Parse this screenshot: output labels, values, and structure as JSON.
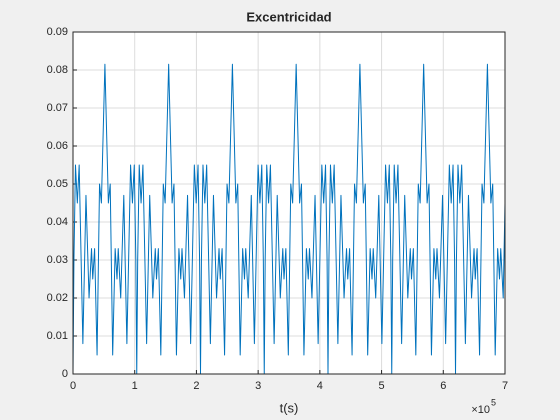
{
  "chart_data": {
    "type": "line",
    "title": "Excentricidad",
    "xlabel": "t(s)",
    "x_multiplier": "×10",
    "x_multiplier_exponent": "5",
    "x": [
      0,
      0.015,
      0.04,
      0.07,
      0.1,
      0.16,
      0.21,
      0.26,
      0.3,
      0.32,
      0.35,
      0.39,
      0.43,
      0.46,
      0.517,
      0.573,
      0.603,
      0.643,
      0.683,
      0.713,
      0.733,
      0.773,
      0.823,
      0.873,
      0.933,
      0.963,
      0.993,
      1.018,
      1.033,
      1.048,
      1.073,
      1.103,
      1.133,
      1.193,
      1.243,
      1.293,
      1.333,
      1.353,
      1.383,
      1.423,
      1.463,
      1.493,
      1.55,
      1.606,
      1.636,
      1.676,
      1.716,
      1.746,
      1.766,
      1.806,
      1.856,
      1.906,
      1.966,
      1.996,
      2.026,
      2.051,
      2.066,
      2.081,
      2.106,
      2.136,
      2.166,
      2.226,
      2.276,
      2.326,
      2.366,
      2.386,
      2.416,
      2.456,
      2.496,
      2.526,
      2.583,
      2.639,
      2.669,
      2.709,
      2.749,
      2.779,
      2.799,
      2.839,
      2.889,
      2.939,
      2.999,
      3.029,
      3.059,
      3.084,
      3.099,
      3.114,
      3.139,
      3.169,
      3.199,
      3.259,
      3.309,
      3.359,
      3.399,
      3.419,
      3.449,
      3.489,
      3.529,
      3.559,
      3.616,
      3.672,
      3.702,
      3.742,
      3.782,
      3.812,
      3.832,
      3.872,
      3.922,
      3.972,
      4.032,
      4.062,
      4.092,
      4.117,
      4.132,
      4.147,
      4.172,
      4.202,
      4.232,
      4.292,
      4.342,
      4.392,
      4.432,
      4.452,
      4.482,
      4.522,
      4.562,
      4.592,
      4.649,
      4.705,
      4.735,
      4.775,
      4.815,
      4.845,
      4.865,
      4.905,
      4.955,
      5.005,
      5.065,
      5.095,
      5.125,
      5.15,
      5.165,
      5.18,
      5.205,
      5.235,
      5.265,
      5.325,
      5.375,
      5.425,
      5.465,
      5.485,
      5.515,
      5.555,
      5.595,
      5.625,
      5.682,
      5.738,
      5.768,
      5.808,
      5.848,
      5.878,
      5.898,
      5.938,
      5.988,
      6.038,
      6.098,
      6.128,
      6.158,
      6.183,
      6.198,
      6.213,
      6.238,
      6.268,
      6.298,
      6.358,
      6.408,
      6.458,
      6.498,
      6.518,
      6.548,
      6.588,
      6.628,
      6.658,
      6.715,
      6.771,
      6.801,
      6.841,
      6.881,
      6.911,
      6.931,
      6.971,
      7.0
    ],
    "series": [
      {
        "color": "#0072bd",
        "values": [
          0,
          0.03,
          0.055,
          0.045,
          0.055,
          0.008,
          0.047,
          0.02,
          0.033,
          0.025,
          0.033,
          0.005,
          0.05,
          0.045,
          0.0815,
          0.045,
          0.05,
          0.005,
          0.033,
          0.025,
          0.033,
          0.02,
          0.047,
          0.008,
          0.055,
          0.045,
          0.055,
          0.03,
          0,
          0.03,
          0.055,
          0.045,
          0.055,
          0.008,
          0.047,
          0.02,
          0.033,
          0.025,
          0.033,
          0.005,
          0.05,
          0.045,
          0.0815,
          0.045,
          0.05,
          0.005,
          0.033,
          0.025,
          0.033,
          0.02,
          0.047,
          0.008,
          0.055,
          0.045,
          0.055,
          0.03,
          0,
          0.03,
          0.055,
          0.045,
          0.055,
          0.008,
          0.047,
          0.02,
          0.033,
          0.025,
          0.033,
          0.005,
          0.05,
          0.045,
          0.0815,
          0.045,
          0.05,
          0.005,
          0.033,
          0.025,
          0.033,
          0.02,
          0.047,
          0.008,
          0.055,
          0.045,
          0.055,
          0.03,
          0,
          0.03,
          0.055,
          0.045,
          0.055,
          0.008,
          0.047,
          0.02,
          0.033,
          0.025,
          0.033,
          0.005,
          0.05,
          0.045,
          0.0815,
          0.045,
          0.05,
          0.005,
          0.033,
          0.025,
          0.033,
          0.02,
          0.047,
          0.008,
          0.055,
          0.045,
          0.055,
          0.03,
          0,
          0.03,
          0.055,
          0.045,
          0.055,
          0.008,
          0.047,
          0.02,
          0.033,
          0.025,
          0.033,
          0.005,
          0.05,
          0.045,
          0.0815,
          0.045,
          0.05,
          0.005,
          0.033,
          0.025,
          0.033,
          0.02,
          0.047,
          0.008,
          0.055,
          0.045,
          0.055,
          0.03,
          0,
          0.03,
          0.055,
          0.045,
          0.055,
          0.008,
          0.047,
          0.02,
          0.033,
          0.025,
          0.033,
          0.005,
          0.05,
          0.045,
          0.0815,
          0.045,
          0.05,
          0.005,
          0.033,
          0.025,
          0.033,
          0.02,
          0.047,
          0.008,
          0.055,
          0.045,
          0.055,
          0.03,
          0,
          0.03,
          0.055,
          0.045,
          0.055,
          0.008,
          0.047,
          0.02,
          0.033,
          0.025,
          0.033,
          0.005,
          0.05,
          0.045,
          0.0815,
          0.045,
          0.05,
          0.005,
          0.033,
          0.025,
          0.033,
          0.02,
          0.045
        ]
      }
    ],
    "xlim": [
      0,
      7
    ],
    "xticks": [
      0,
      1,
      2,
      3,
      4,
      5,
      6,
      7
    ],
    "ylim": [
      0,
      0.09
    ],
    "yticks": [
      0,
      0.01,
      0.02,
      0.03,
      0.04,
      0.05,
      0.06,
      0.07,
      0.08,
      0.09
    ],
    "grid": true
  }
}
